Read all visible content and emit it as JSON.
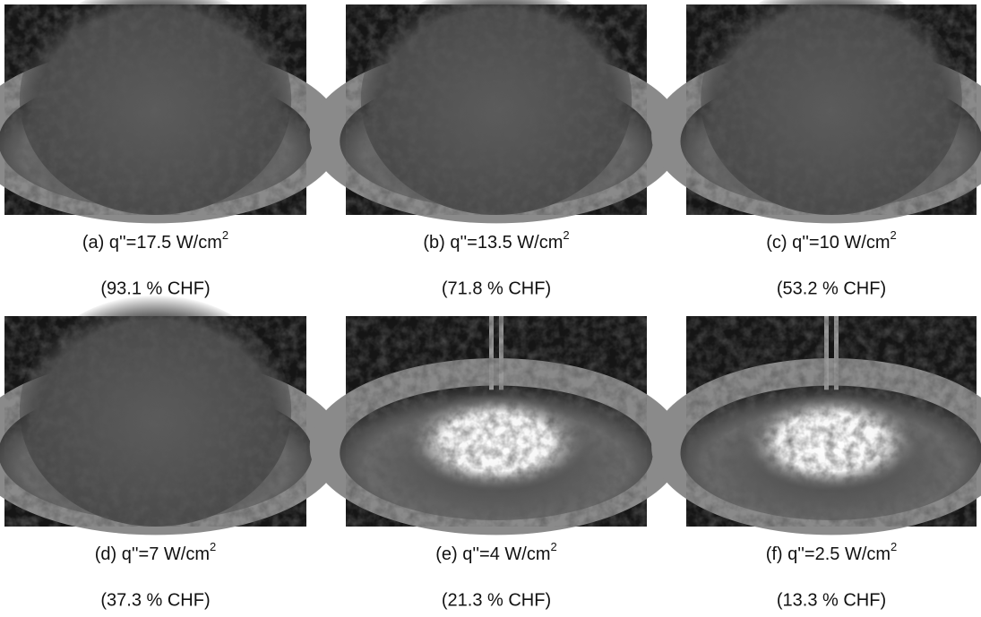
{
  "panels": [
    {
      "caption": "(a) q''=17.5 W/cm",
      "superscript": "2",
      "note": "(93.1 % CHF)",
      "style": "dense"
    },
    {
      "caption": "(b) q''=13.5 W/cm",
      "superscript": "2",
      "note": "(71.8 % CHF)",
      "style": "dense"
    },
    {
      "caption": "(c) q''=10 W/cm",
      "superscript": "2",
      "note": "(53.2 % CHF)",
      "style": "dense"
    },
    {
      "caption": "(d) q''=7 W/cm",
      "superscript": "2",
      "note": "(37.3 % CHF)",
      "style": "dense"
    },
    {
      "caption": "(e) q''=4 W/cm",
      "superscript": "2",
      "note": "(21.3 % CHF)",
      "style": "bright"
    },
    {
      "caption": "(f) q''=2.5 W/cm",
      "superscript": "2",
      "note": "(13.3 % CHF)",
      "style": "bright"
    }
  ]
}
